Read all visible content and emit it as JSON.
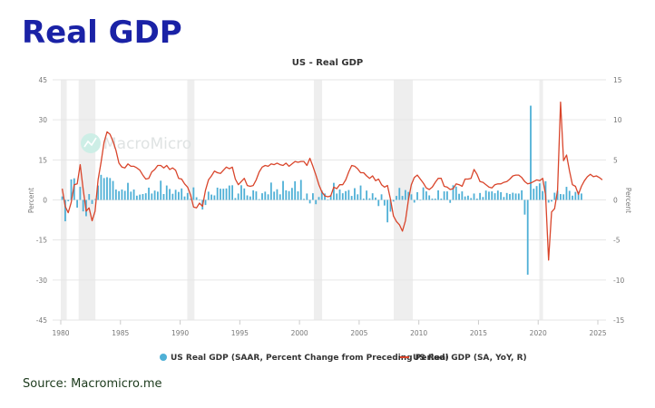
{
  "page": {
    "title": "Real GDP",
    "source": "Source: Macromicro.me"
  },
  "chart_data": {
    "type": "bar+line",
    "title": "US - Real GDP",
    "watermark": "MacroMicro",
    "xlabel": "",
    "ylabel_left": "Percent",
    "ylabel_right": "Percent",
    "xlim": [
      1980,
      2025
    ],
    "ylim_left": [
      -45,
      45
    ],
    "ylim_right": [
      -15,
      15
    ],
    "x_ticks": [
      "1980",
      "1985",
      "1990",
      "1995",
      "2000",
      "2005",
      "2010",
      "2015",
      "2020",
      "2025"
    ],
    "y_ticks_left": [
      "45",
      "30",
      "15",
      "0",
      "-15",
      "-30",
      "-45"
    ],
    "y_ticks_right": [
      "15",
      "10",
      "5",
      "0",
      "-5",
      "-10",
      "-15"
    ],
    "grid": true,
    "legend_position": "bottom",
    "recessions": [
      [
        1980.0,
        1980.5
      ],
      [
        1981.5,
        1982.9
      ],
      [
        1990.6,
        1991.2
      ],
      [
        2001.2,
        2001.9
      ],
      [
        2007.9,
        2009.5
      ],
      [
        2020.1,
        2020.4
      ]
    ],
    "colors": {
      "bars": "#4fb0d6",
      "line": "#d9452b",
      "recession": "#eeeeee",
      "grid": "#e6e6e6",
      "title": "#1a22a6"
    },
    "series": [
      {
        "name": "US Real GDP (SAAR, Percent Change from Preceding Period)",
        "axis": "left",
        "type": "bar",
        "start": 1980.0,
        "step": 0.25,
        "values": [
          1.3,
          -8.0,
          -0.5,
          7.7,
          8.1,
          -2.9,
          4.9,
          -4.3,
          -6.1,
          2.2,
          -1.5,
          0.3,
          5.4,
          9.4,
          8.2,
          8.5,
          8.2,
          7.1,
          3.9,
          3.3,
          3.9,
          3.4,
          6.4,
          3.1,
          3.9,
          1.6,
          2.0,
          2.2,
          2.5,
          4.6,
          2.4,
          3.5,
          3.1,
          7.2,
          2.2,
          5.4,
          4.1,
          2.3,
          3.8,
          3.0,
          4.3,
          1.3,
          2.6,
          0.4,
          4.7,
          1.0,
          0.0,
          -3.6,
          -1.9,
          3.1,
          2.0,
          1.7,
          4.6,
          4.2,
          4.2,
          4.3,
          5.4,
          5.5,
          0.7,
          2.4,
          5.5,
          4.3,
          1.7,
          1.3,
          3.6,
          3.2,
          0.3,
          2.5,
          3.1,
          2.1,
          6.5,
          3.1,
          4.0,
          2.1,
          7.1,
          3.6,
          3.3,
          4.5,
          7.0,
          3.2,
          7.5,
          0.4,
          2.4,
          -1.3,
          2.5,
          -1.6,
          1.1,
          3.5,
          2.4,
          0.1,
          1.8,
          6.4,
          2.4,
          3.9,
          2.5,
          3.3,
          3.7,
          1.5,
          4.4,
          2.1,
          5.4,
          0.5,
          3.5,
          0.6,
          2.5,
          0.9,
          -2.3,
          2.1,
          -2.1,
          -8.4,
          -4.4,
          -0.6,
          1.5,
          4.5,
          1.5,
          3.7,
          3.0,
          2.1,
          -1.0,
          2.9,
          -0.1,
          4.7,
          3.2,
          1.7,
          0.5,
          0.5,
          3.6,
          0.5,
          3.2,
          3.2,
          -1.1,
          5.5,
          5.0,
          2.3,
          3.2,
          1.3,
          1.6,
          0.7,
          2.4,
          0.5,
          2.6,
          1.1,
          3.5,
          3.1,
          3.2,
          2.5,
          3.5,
          2.9,
          1.1,
          2.6,
          2.2,
          2.7,
          2.4,
          2.4,
          3.6,
          -5.5,
          -28.0,
          35.3,
          4.2,
          5.2,
          6.2,
          3.3,
          7.0,
          -1.0,
          -0.6,
          2.7,
          3.4,
          2.2,
          2.1,
          4.9,
          3.4,
          1.6,
          3.0,
          3.1,
          2.4
        ]
      },
      {
        "name": "US Real GDP (SA, YoY, R)",
        "axis": "right",
        "type": "line",
        "start": 1980.0,
        "step": 0.25,
        "values": [
          1.4,
          -0.8,
          -1.6,
          -0.3,
          1.9,
          2.0,
          4.4,
          1.3,
          -1.4,
          -1.0,
          -2.6,
          -1.4,
          2.5,
          4.7,
          7.2,
          8.5,
          8.2,
          7.3,
          6.2,
          4.6,
          4.1,
          4.0,
          4.5,
          4.2,
          4.2,
          4.0,
          3.7,
          3.1,
          2.6,
          2.7,
          3.5,
          3.8,
          4.3,
          4.3,
          4.0,
          4.3,
          3.8,
          4.0,
          3.7,
          2.7,
          2.6,
          2.0,
          1.6,
          0.6,
          -0.9,
          -1.0,
          -0.4,
          -0.8,
          1.2,
          2.5,
          3.0,
          3.6,
          3.4,
          3.3,
          3.7,
          4.1,
          3.9,
          4.1,
          2.6,
          1.9,
          2.3,
          2.7,
          1.8,
          1.7,
          1.8,
          2.5,
          3.5,
          4.1,
          4.3,
          4.2,
          4.5,
          4.4,
          4.6,
          4.4,
          4.3,
          4.6,
          4.2,
          4.5,
          4.8,
          4.7,
          4.8,
          4.8,
          4.3,
          5.2,
          4.2,
          3.1,
          1.9,
          1.0,
          0.5,
          0.4,
          0.5,
          1.6,
          1.4,
          1.9,
          1.9,
          2.5,
          3.5,
          4.3,
          4.2,
          3.9,
          3.4,
          3.4,
          3.0,
          2.7,
          3.0,
          2.4,
          2.6,
          1.9,
          1.6,
          1.8,
          0.1,
          -2.0,
          -2.7,
          -3.1,
          -3.9,
          -2.6,
          0.0,
          1.9,
          2.8,
          3.1,
          2.6,
          2.1,
          1.5,
          1.3,
          1.6,
          2.2,
          2.7,
          2.7,
          1.7,
          1.6,
          1.3,
          1.4,
          2.0,
          1.9,
          1.7,
          2.6,
          2.6,
          2.7,
          3.8,
          3.2,
          2.3,
          2.2,
          1.9,
          1.6,
          1.5,
          1.9,
          2.0,
          2.0,
          2.2,
          2.3,
          2.6,
          3.0,
          3.1,
          3.1,
          2.8,
          2.3,
          2.0,
          2.1,
          2.3,
          2.5,
          2.4,
          2.7,
          0.6,
          -7.5,
          -1.5,
          -1.1,
          1.2,
          12.2,
          4.9,
          5.6,
          3.6,
          1.9,
          1.7,
          0.7,
          1.7,
          2.4,
          2.9,
          3.2,
          2.9,
          3.0,
          2.8,
          2.5
        ]
      }
    ]
  },
  "legend": [
    {
      "label": "US Real GDP (SAAR, Percent Change from Preceding Period)",
      "marker": "circle"
    },
    {
      "label": "US Real GDP (SA, YoY, R)",
      "marker": "line"
    }
  ]
}
